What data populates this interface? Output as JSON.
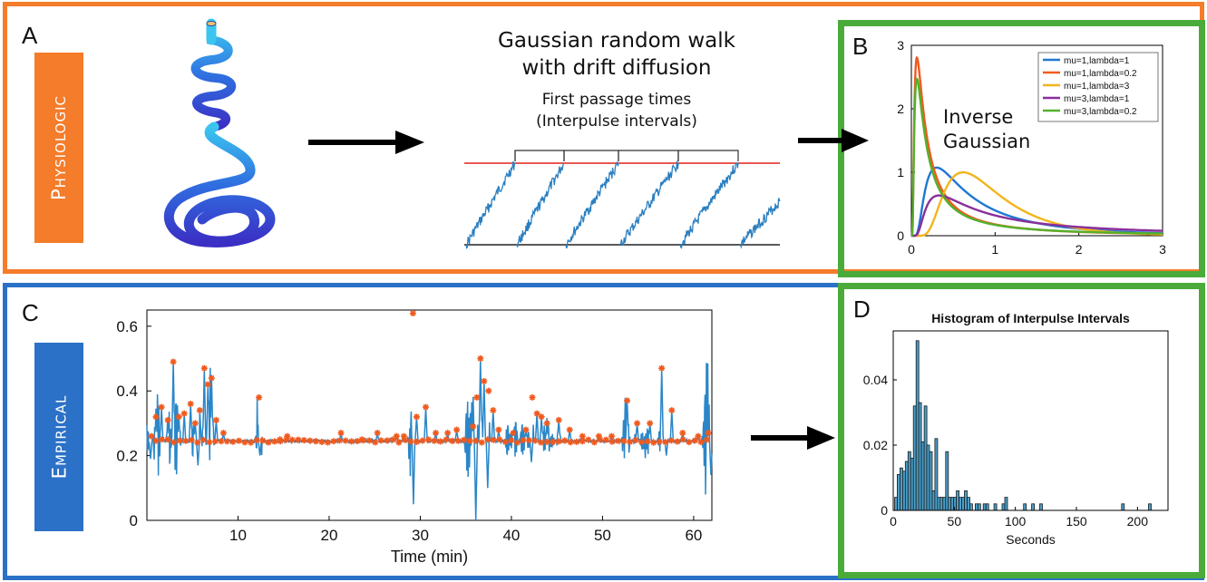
{
  "figure": {
    "panel_a": {
      "letter": "A",
      "tag": "Physiologic"
    },
    "panel_b": {
      "letter": "B",
      "annotation_line1": "Inverse",
      "annotation_line2": "Gaussian"
    },
    "panel_c": {
      "letter": "C",
      "tag": "Empirical"
    },
    "panel_d": {
      "letter": "D"
    },
    "walk": {
      "title_line1": "Gaussian random walk",
      "title_line2": "with drift diffusion",
      "subtitle_line1": "First passage times",
      "subtitle_line2": "(Interpulse intervals)"
    },
    "colors": {
      "orange_frame": "#f47c2a",
      "blue_frame": "#2b71c7",
      "green_frame": "#4aab3a",
      "tag_orange": "#f47c2a",
      "tag_blue": "#2b71c7",
      "threshold_red": "#e0201a",
      "walk_blue": "#2a7fc1",
      "arrow": "#000000"
    },
    "icons": [
      "coiled-tube-icon",
      "right-arrow-icon"
    ]
  },
  "chart_data": [
    {
      "id": "B",
      "type": "line",
      "title": "",
      "xlabel": "",
      "ylabel": "",
      "xlim": [
        0,
        3
      ],
      "ylim": [
        0,
        3
      ],
      "xticks": [
        0,
        1,
        2,
        3
      ],
      "yticks": [
        0,
        1,
        2,
        3
      ],
      "legend_position": "top-right",
      "series": [
        {
          "name": "mu=1,lambda=1",
          "mu": 1,
          "lambda": 1,
          "color": "#1f77d4"
        },
        {
          "name": "mu=1,lambda=0.2",
          "mu": 1,
          "lambda": 0.2,
          "color": "#f05a1e"
        },
        {
          "name": "mu=1,lambda=3",
          "mu": 1,
          "lambda": 3,
          "color": "#f2b51c"
        },
        {
          "name": "mu=3,lambda=1",
          "mu": 3,
          "lambda": 1,
          "color": "#8a2f9c"
        },
        {
          "name": "mu=3,lambda=0.2",
          "mu": 3,
          "lambda": 0.2,
          "color": "#55b02c"
        }
      ]
    },
    {
      "id": "C",
      "type": "line",
      "title": "",
      "xlabel": "Time (min)",
      "ylabel": "",
      "xlim": [
        0,
        62
      ],
      "ylim": [
        0,
        0.65
      ],
      "xticks": [
        10,
        20,
        30,
        40,
        50,
        60
      ],
      "yticks": [
        0,
        0.2,
        0.4,
        0.6
      ],
      "baseline": 0.245,
      "line_color": "#2a86c8",
      "marker_color": "#f05a1e",
      "peaks": [
        [
          0.5,
          0.26
        ],
        [
          1.0,
          0.32
        ],
        [
          1.6,
          0.35
        ],
        [
          2.3,
          0.31
        ],
        [
          2.9,
          0.49
        ],
        [
          3.5,
          0.32
        ],
        [
          4.1,
          0.33
        ],
        [
          4.8,
          0.36
        ],
        [
          5.3,
          0.3
        ],
        [
          5.8,
          0.34
        ],
        [
          6.3,
          0.47
        ],
        [
          6.7,
          0.42
        ],
        [
          7.1,
          0.44
        ],
        [
          7.6,
          0.31
        ],
        [
          8.4,
          0.27
        ],
        [
          12.3,
          0.38
        ],
        [
          14.6,
          0.25
        ],
        [
          15.4,
          0.26
        ],
        [
          21.3,
          0.27
        ],
        [
          23.6,
          0.25
        ],
        [
          25.3,
          0.27
        ],
        [
          27.4,
          0.26
        ],
        [
          28.2,
          0.26
        ],
        [
          29.2,
          0.64
        ],
        [
          29.6,
          0.32
        ],
        [
          30.6,
          0.35
        ],
        [
          31.7,
          0.27
        ],
        [
          33.0,
          0.27
        ],
        [
          34.0,
          0.28
        ],
        [
          35.8,
          0.29
        ],
        [
          36.2,
          0.38
        ],
        [
          36.6,
          0.5
        ],
        [
          37.0,
          0.43
        ],
        [
          37.5,
          0.4
        ],
        [
          38.0,
          0.34
        ],
        [
          38.6,
          0.28
        ],
        [
          40.2,
          0.27
        ],
        [
          41.6,
          0.28
        ],
        [
          42.3,
          0.38
        ],
        [
          42.8,
          0.33
        ],
        [
          43.3,
          0.32
        ],
        [
          43.9,
          0.3
        ],
        [
          45.2,
          0.31
        ],
        [
          46.4,
          0.28
        ],
        [
          47.8,
          0.26
        ],
        [
          49.6,
          0.26
        ],
        [
          51.0,
          0.26
        ],
        [
          52.7,
          0.37
        ],
        [
          53.8,
          0.3
        ],
        [
          55.2,
          0.3
        ],
        [
          56.5,
          0.47
        ],
        [
          57.6,
          0.34
        ],
        [
          58.8,
          0.27
        ],
        [
          60.5,
          0.26
        ],
        [
          61.6,
          0.27
        ]
      ]
    },
    {
      "id": "D",
      "type": "bar",
      "title": "Histogram of Interpulse Intervals",
      "xlabel": "Seconds",
      "ylabel": "",
      "xlim": [
        0,
        225
      ],
      "ylim": [
        0,
        0.055
      ],
      "xticks": [
        0,
        50,
        100,
        150,
        200
      ],
      "yticks": [
        0,
        0.02,
        0.04
      ],
      "bin_width": 2.2,
      "bar_color": "#4a9ec8",
      "bins_start": [
        1.1,
        3.3,
        5.5,
        7.7,
        9.9,
        12.1,
        14.3,
        16.5,
        18.7,
        20.9,
        23.1,
        25.3,
        27.5,
        29.7,
        31.9,
        34.1,
        36.3,
        38.5,
        40.7,
        42.9,
        45.1,
        47.3,
        49.5,
        51.7,
        53.9,
        56.1,
        58.3,
        60.5,
        62.7,
        67.1,
        69.3,
        73.7,
        75.9,
        82.5,
        89.1,
        91.3,
        106.7,
        113.3,
        119.9,
        187.0,
        209.0
      ],
      "values": [
        0.004,
        0.011,
        0.013,
        0.012,
        0.015,
        0.018,
        0.016,
        0.032,
        0.052,
        0.033,
        0.021,
        0.032,
        0.02,
        0.018,
        0.006,
        0.022,
        0.004,
        0.004,
        0.004,
        0.018,
        0.004,
        0.004,
        0.004,
        0.006,
        0.004,
        0.004,
        0.006,
        0.004,
        0.002,
        0.002,
        0.002,
        0.002,
        0.002,
        0.002,
        0.002,
        0.004,
        0.002,
        0.002,
        0.002,
        0.002,
        0.002
      ]
    }
  ]
}
